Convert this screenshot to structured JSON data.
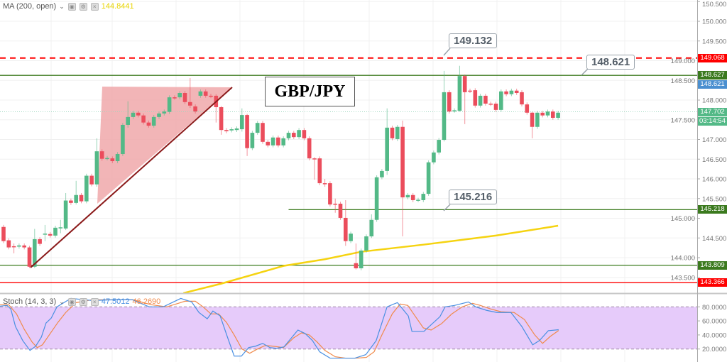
{
  "chart_data": {
    "type": "candlestick",
    "title": "GBP/JPY",
    "price_axis": {
      "range": [
        143.3,
        150.5
      ],
      "ticks": [
        "150.500",
        "150.000",
        "149.500",
        "149.000",
        "148.500",
        "148.000",
        "147.500",
        "147.000",
        "146.500",
        "146.000",
        "145.500",
        "145.000",
        "144.500",
        "144.000",
        "143.500"
      ]
    },
    "candles": [
      [
        144.78,
        144.42
      ],
      [
        144.44,
        144.26
      ],
      [
        144.29,
        144.28,
        144.36,
        144.11
      ],
      [
        144.28,
        144.31
      ],
      [
        144.31,
        144.26
      ],
      [
        144.26,
        143.77,
        144.3,
        143.74
      ],
      [
        143.77,
        144.47,
        144.73,
        143.74
      ],
      [
        144.47,
        144.35
      ],
      [
        144.6,
        144.61,
        144.83,
        144.42
      ],
      [
        144.6,
        144.56
      ],
      [
        144.56,
        144.76
      ],
      [
        144.76,
        144.77,
        144.96,
        144.62
      ],
      [
        144.74,
        145.45,
        145.64,
        144.7
      ],
      [
        145.45,
        145.39
      ],
      [
        145.39,
        145.59,
        145.95,
        145.35
      ],
      [
        145.59,
        145.43
      ],
      [
        145.43,
        146.08
      ],
      [
        146.08,
        145.86
      ],
      [
        145.86,
        146.7,
        147.03,
        145.8
      ],
      [
        146.7,
        146.51
      ],
      [
        146.52,
        146.53
      ],
      [
        146.52,
        146.45
      ],
      [
        146.45,
        146.63
      ],
      [
        146.63,
        147.37
      ],
      [
        147.37,
        147.57,
        147.97,
        147.3
      ],
      [
        147.57,
        147.68
      ],
      [
        147.68,
        147.61
      ],
      [
        147.61,
        147.43
      ],
      [
        147.43,
        147.35
      ],
      [
        147.35,
        147.57
      ],
      [
        147.57,
        147.66
      ],
      [
        147.66,
        147.71
      ],
      [
        147.7,
        148.07
      ],
      [
        148.07,
        148.06
      ],
      [
        148.07,
        148.18
      ],
      [
        148.18,
        147.95
      ],
      [
        147.95,
        147.86,
        148.56,
        147.8
      ],
      [
        147.84,
        147.71
      ],
      [
        148.11,
        148.22
      ],
      [
        148.22,
        148.11
      ],
      [
        148.11,
        148.1
      ],
      [
        148.11,
        147.82,
        148.15,
        147.43
      ],
      [
        147.82,
        147.24,
        147.85,
        147.12
      ],
      [
        147.24,
        147.21
      ],
      [
        147.23,
        147.26
      ],
      [
        147.24,
        147.28
      ],
      [
        147.26,
        147.62,
        147.79,
        147.2
      ],
      [
        147.62,
        146.78,
        147.65,
        146.58
      ],
      [
        146.78,
        147.17
      ],
      [
        147.17,
        147.42
      ],
      [
        147.42,
        146.94
      ],
      [
        146.94,
        146.85
      ],
      [
        146.85,
        147.05
      ],
      [
        147.05,
        146.85
      ],
      [
        146.85,
        147.03
      ],
      [
        147.03,
        147.17
      ],
      [
        147.17,
        147.06
      ],
      [
        147.06,
        147.24
      ],
      [
        147.24,
        147.03
      ],
      [
        147.03,
        146.52
      ],
      [
        146.52,
        146.51,
        146.55,
        145.98
      ],
      [
        146.52,
        145.89
      ],
      [
        145.89,
        145.88,
        146.0,
        145.8
      ],
      [
        145.89,
        145.35
      ],
      [
        145.37,
        145.36,
        145.5,
        145.14
      ],
      [
        145.37,
        145.01
      ],
      [
        145.01,
        144.42,
        145.46,
        144.3
      ],
      [
        144.42,
        144.61
      ],
      [
        143.86,
        143.73,
        144.36,
        143.7
      ],
      [
        143.73,
        144.18
      ],
      [
        144.18,
        144.54
      ],
      [
        144.54,
        144.96,
        145.1,
        144.5
      ],
      [
        144.96,
        146.04
      ],
      [
        146.04,
        146.2
      ],
      [
        146.2,
        147.3,
        147.79,
        146.1
      ],
      [
        147.3,
        147.03
      ],
      [
        147.01,
        147.32
      ],
      [
        147.32,
        145.53,
        147.48,
        144.54
      ],
      [
        145.53,
        145.59
      ],
      [
        145.59,
        145.46
      ],
      [
        145.46,
        145.47
      ],
      [
        145.46,
        145.62
      ],
      [
        145.62,
        146.42
      ],
      [
        146.42,
        146.67
      ],
      [
        146.67,
        146.99
      ],
      [
        146.99,
        148.2,
        148.74,
        146.95
      ],
      [
        148.2,
        147.71
      ],
      [
        147.73,
        147.74
      ],
      [
        147.73,
        148.61,
        148.87,
        147.7
      ],
      [
        148.61,
        148.2,
        148.65,
        147.39
      ],
      [
        148.24,
        148.23
      ],
      [
        148.25,
        147.86
      ],
      [
        147.86,
        148.11
      ],
      [
        148.11,
        147.91
      ],
      [
        147.91,
        147.9
      ],
      [
        147.91,
        147.75
      ],
      [
        147.75,
        148.22
      ],
      [
        148.22,
        148.15
      ],
      [
        148.15,
        148.24
      ],
      [
        148.24,
        148.18
      ],
      [
        148.2,
        147.89
      ],
      [
        147.89,
        147.68
      ],
      [
        147.68,
        147.32,
        147.7,
        147.03
      ],
      [
        147.32,
        147.68
      ],
      [
        147.68,
        147.61
      ],
      [
        147.61,
        147.71
      ],
      [
        147.71,
        147.55
      ],
      [
        147.55,
        147.68
      ]
    ],
    "ma": {
      "label": "MA (200, open)",
      "value": "144.8441",
      "points": [
        [
          34.7,
          143.1
        ],
        [
          42,
          143.34
        ],
        [
          54,
          143.79
        ],
        [
          62,
          143.96
        ],
        [
          69,
          144.15
        ],
        [
          81,
          144.33
        ],
        [
          95,
          144.56
        ],
        [
          107,
          144.81
        ]
      ]
    },
    "levels": [
      {
        "price": 149.068,
        "label": "149.068",
        "color": "#ff0000",
        "style": "dashed"
      },
      {
        "price": 148.627,
        "label": "148.627",
        "color": "#3b7a1e",
        "style": "solid"
      },
      {
        "price": 145.218,
        "label": "145.218",
        "color": "#3b7a1e",
        "style": "solid",
        "from_index": 55
      },
      {
        "price": 143.809,
        "label": "143.809",
        "color": "#3b7a1e",
        "style": "solid"
      },
      {
        "price": 143.366,
        "label": "143.366",
        "color": "#ff0000",
        "style": "solid"
      }
    ],
    "axis_labels": [
      {
        "price": 148.621,
        "label": "148.621",
        "color": "#4a8fd0"
      },
      {
        "price": 147.702,
        "label": "147.702",
        "color": "#53b987"
      },
      {
        "price": 147.48,
        "label": "03:14:54",
        "color": "#53b987"
      }
    ],
    "callouts": [
      "149.132",
      "148.621",
      "145.216"
    ],
    "stoch": {
      "label": "Stoch (14, 3, 3)",
      "k_value": "47.5012",
      "d_value": "46.2690",
      "range": [
        0,
        100
      ],
      "ticks": [
        "80.0000",
        "60.0000",
        "40.0000",
        "20.0000"
      ],
      "k": [
        [
          -0.7,
          81
        ],
        [
          0.7,
          82
        ],
        [
          1.4,
          77
        ],
        [
          2.3,
          52
        ],
        [
          3.7,
          32
        ],
        [
          5.1,
          18
        ],
        [
          6.2,
          24
        ],
        [
          7.3,
          37
        ],
        [
          8.2,
          57
        ],
        [
          9.2,
          64
        ],
        [
          10.3,
          80
        ],
        [
          13,
          92
        ],
        [
          17.1,
          89
        ],
        [
          21.2,
          90
        ],
        [
          24.9,
          90
        ],
        [
          28.1,
          80
        ],
        [
          30.8,
          80
        ],
        [
          34.2,
          92
        ],
        [
          36.3,
          87
        ],
        [
          37.7,
          72
        ],
        [
          39.3,
          63
        ],
        [
          40.4,
          74
        ],
        [
          41.8,
          67
        ],
        [
          43.2,
          37
        ],
        [
          44.5,
          10
        ],
        [
          45.9,
          10
        ],
        [
          47.3,
          22
        ],
        [
          48.6,
          24
        ],
        [
          50,
          28
        ],
        [
          51.4,
          22
        ],
        [
          52.7,
          21
        ],
        [
          54.1,
          23
        ],
        [
          56.8,
          47
        ],
        [
          58.2,
          42
        ],
        [
          59.6,
          32
        ],
        [
          61,
          16
        ],
        [
          63,
          7
        ],
        [
          65.1,
          7
        ],
        [
          67.8,
          7
        ],
        [
          69.9,
          12
        ],
        [
          71.9,
          32
        ],
        [
          74,
          80
        ],
        [
          75.3,
          84
        ],
        [
          76,
          86
        ],
        [
          78.1,
          67
        ],
        [
          78.8,
          45
        ],
        [
          81.1,
          45
        ],
        [
          84.2,
          66
        ],
        [
          85.2,
          80
        ],
        [
          87,
          82
        ],
        [
          89.7,
          87
        ],
        [
          91.1,
          80
        ],
        [
          93.2,
          75
        ],
        [
          95.2,
          72
        ],
        [
          97.9,
          72
        ],
        [
          100,
          52
        ],
        [
          102.1,
          26
        ],
        [
          103.4,
          32
        ],
        [
          105.1,
          46
        ],
        [
          107.1,
          47.5
        ]
      ],
      "d": [
        [
          -0.7,
          83
        ],
        [
          1,
          83
        ],
        [
          2.5,
          70
        ],
        [
          4,
          48
        ],
        [
          5.5,
          30
        ],
        [
          6.5,
          22
        ],
        [
          7.5,
          26
        ],
        [
          9,
          42
        ],
        [
          10.5,
          58
        ],
        [
          12,
          72
        ],
        [
          14,
          86
        ],
        [
          17,
          90
        ],
        [
          21,
          90
        ],
        [
          25,
          90
        ],
        [
          28.5,
          83
        ],
        [
          31.5,
          80
        ],
        [
          35,
          88
        ],
        [
          37,
          88
        ],
        [
          38.5,
          80
        ],
        [
          40,
          70
        ],
        [
          41.5,
          70
        ],
        [
          43,
          58
        ],
        [
          44.5,
          40
        ],
        [
          46,
          20
        ],
        [
          47.5,
          14
        ],
        [
          49,
          20
        ],
        [
          50.5,
          25
        ],
        [
          52,
          24
        ],
        [
          54,
          22
        ],
        [
          56,
          36
        ],
        [
          57.5,
          43
        ],
        [
          59,
          40
        ],
        [
          60.5,
          30
        ],
        [
          62,
          18
        ],
        [
          64,
          9
        ],
        [
          66,
          7
        ],
        [
          68,
          7
        ],
        [
          70,
          8
        ],
        [
          71.5,
          16
        ],
        [
          73,
          40
        ],
        [
          75,
          70
        ],
        [
          76.5,
          84
        ],
        [
          78,
          82
        ],
        [
          79.5,
          66
        ],
        [
          81,
          50
        ],
        [
          82.5,
          47
        ],
        [
          84.5,
          56
        ],
        [
          86.5,
          70
        ],
        [
          88.5,
          80
        ],
        [
          90.5,
          85
        ],
        [
          92,
          82
        ],
        [
          94,
          77
        ],
        [
          96,
          73
        ],
        [
          98.5,
          72
        ],
        [
          100.5,
          62
        ],
        [
          102.5,
          40
        ],
        [
          104,
          28
        ],
        [
          105.5,
          38
        ],
        [
          107.1,
          46.3
        ]
      ]
    },
    "colors": {
      "up": "#53b987",
      "down": "#eb4d5c",
      "ma": "#f5d310",
      "k": "#4a90e2",
      "d": "#f08a4b",
      "band": "#e6cbfa",
      "triangle": "#f0a8aa",
      "trendline": "#8b1a1a"
    }
  }
}
